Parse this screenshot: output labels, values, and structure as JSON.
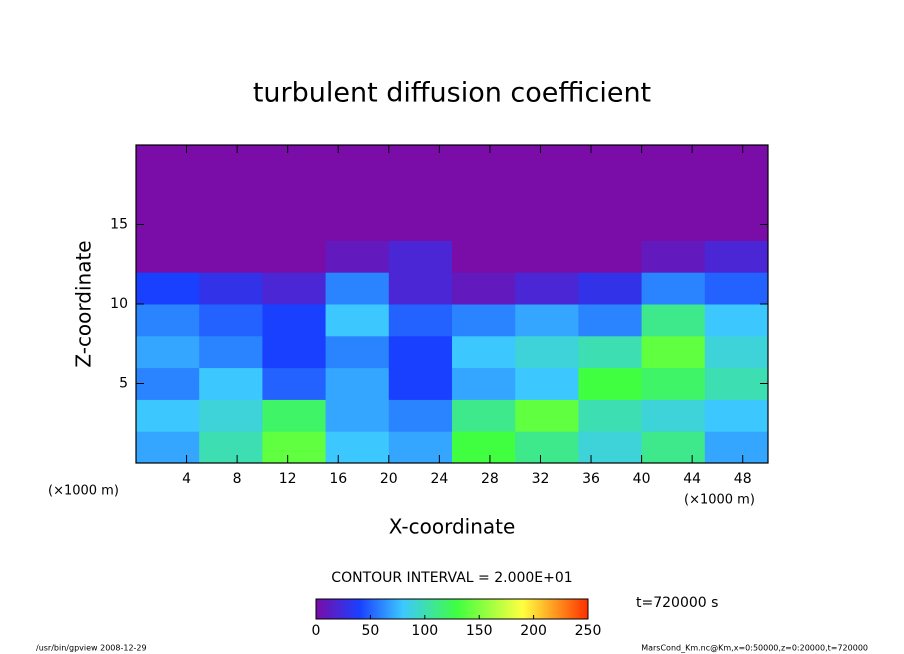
{
  "chart_data": {
    "type": "heatmap",
    "title": "turbulent diffusion coefficient",
    "x_label": "X-coordinate",
    "y_label": "Z-coordinate",
    "x_unit": "(×1000 m)",
    "y_unit": "(×1000 m)",
    "xlim": [
      0,
      50
    ],
    "ylim": [
      0,
      20
    ],
    "xticks": [
      4,
      8,
      12,
      16,
      20,
      24,
      28,
      32,
      36,
      40,
      44,
      48
    ],
    "yticks": [
      5,
      10,
      15
    ],
    "z": [
      [
        70,
        100,
        140,
        80,
        70,
        130,
        110,
        90,
        110,
        70
      ],
      [
        80,
        90,
        120,
        70,
        60,
        110,
        140,
        100,
        90,
        80
      ],
      [
        60,
        80,
        50,
        70,
        40,
        70,
        80,
        130,
        120,
        100
      ],
      [
        70,
        60,
        40,
        60,
        40,
        80,
        90,
        100,
        140,
        90
      ],
      [
        60,
        50,
        40,
        80,
        50,
        60,
        70,
        60,
        110,
        80
      ],
      [
        40,
        30,
        20,
        60,
        20,
        10,
        20,
        30,
        60,
        50
      ],
      [
        0,
        0,
        0,
        10,
        20,
        0,
        0,
        0,
        10,
        20
      ],
      [
        0,
        0,
        0,
        0,
        0,
        0,
        0,
        0,
        0,
        0
      ],
      [
        0,
        0,
        0,
        0,
        0,
        0,
        0,
        0,
        0,
        0
      ],
      [
        0,
        0,
        0,
        0,
        0,
        0,
        0,
        0,
        0,
        0
      ]
    ],
    "colorscale": [
      [
        0,
        "#7a0ca8"
      ],
      [
        40,
        "#1a40ff"
      ],
      [
        80,
        "#3cc8ff"
      ],
      [
        130,
        "#40ff40"
      ],
      [
        190,
        "#ffff40"
      ],
      [
        250,
        "#ff3000"
      ]
    ],
    "clim": [
      0,
      250
    ],
    "cticks": [
      0,
      50,
      100,
      150,
      200,
      250
    ],
    "contour_note": "CONTOUR INTERVAL = 2.000E+01",
    "time_label": "t=720000 s",
    "footer_left": "/usr/bin/gpview  2008-12-29",
    "footer_right": "MarsCond_Km.nc@Km,x=0:50000,z=0:20000,t=720000"
  }
}
